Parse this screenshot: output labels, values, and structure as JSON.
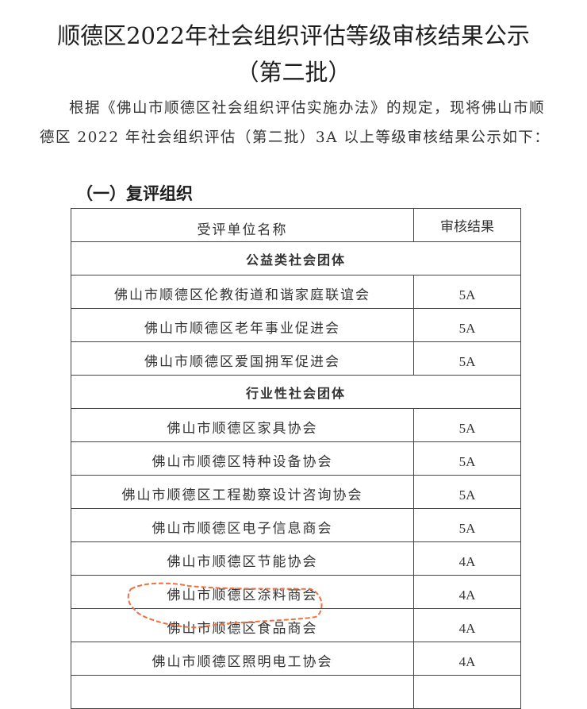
{
  "document": {
    "title_line1": "顺德区2022年社会组织评估等级审核结果公示",
    "title_line2": "（第二批）",
    "intro": "根据《佛山市顺德区社会组织评估实施办法》的规定，现将佛山市顺德区 2022 年社会组织评估（第二批）3A 以上等级审核结果公示如下：",
    "section_heading": "（一）复评组织",
    "table": {
      "headers": [
        "受评单位名称",
        "审核结果"
      ],
      "groups": [
        {
          "category": "公益类社会团体",
          "rows": [
            {
              "name": "佛山市顺德区伦教街道和谐家庭联谊会",
              "result": "5A"
            },
            {
              "name": "佛山市顺德区老年事业促进会",
              "result": "5A"
            },
            {
              "name": "佛山市顺德区爱国拥军促进会",
              "result": "5A"
            }
          ]
        },
        {
          "category": "行业性社会团体",
          "rows": [
            {
              "name": "佛山市顺德区家具协会",
              "result": "5A"
            },
            {
              "name": "佛山市顺德区特种设备协会",
              "result": "5A"
            },
            {
              "name": "佛山市顺德区工程勘察设计咨询协会",
              "result": "5A"
            },
            {
              "name": "佛山市顺德区电子信息商会",
              "result": "5A"
            },
            {
              "name": "佛山市顺德区节能协会",
              "result": "4A"
            },
            {
              "name": "佛山市顺德区涂料商会",
              "result": "4A",
              "highlighted": true
            },
            {
              "name": "佛山市顺德区食品商会",
              "result": "4A"
            },
            {
              "name": "佛山市顺德区照明电工协会",
              "result": "4A"
            }
          ]
        }
      ]
    },
    "highlight_color": "#f07040"
  }
}
